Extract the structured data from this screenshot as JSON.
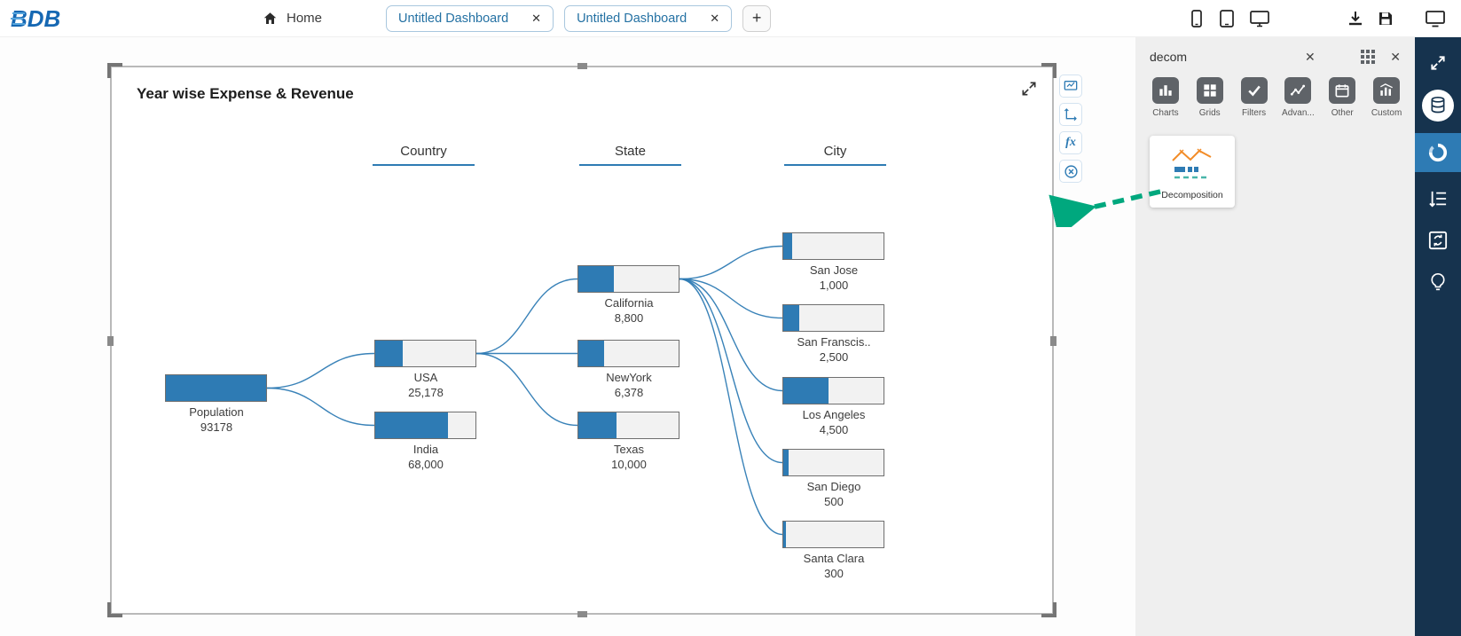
{
  "topbar": {
    "logo_text": "BDB",
    "home_label": "Home",
    "tabs": [
      {
        "label": "Untitled Dashboard"
      },
      {
        "label": "Untitled Dashboard"
      }
    ],
    "add_tab_label": "+"
  },
  "widget": {
    "title": "Year wise Expense & Revenue",
    "toolbar_fx": "fx"
  },
  "chart_data": {
    "type": "decomposition-tree",
    "title": "Year wise Expense & Revenue",
    "columns": [
      "Country",
      "State",
      "City"
    ],
    "nodes": [
      {
        "id": "population",
        "label": "Population",
        "value": "93178",
        "fill": 1.0
      },
      {
        "id": "usa",
        "label": "USA",
        "value": "25,178",
        "fill": 0.27
      },
      {
        "id": "india",
        "label": "India",
        "value": "68,000",
        "fill": 0.73
      },
      {
        "id": "california",
        "label": "California",
        "value": "8,800",
        "fill": 0.35
      },
      {
        "id": "newyork",
        "label": "NewYork",
        "value": "6,378",
        "fill": 0.26
      },
      {
        "id": "texas",
        "label": "Texas",
        "value": "10,000",
        "fill": 0.38
      },
      {
        "id": "sanjose",
        "label": "San Jose",
        "value": "1,000",
        "fill": 0.09
      },
      {
        "id": "sanfrancisco",
        "label": "San Franscis..",
        "value": "2,500",
        "fill": 0.16
      },
      {
        "id": "losangeles",
        "label": "Los Angeles",
        "value": "4,500",
        "fill": 0.45
      },
      {
        "id": "sandiego",
        "label": "San Diego",
        "value": "500",
        "fill": 0.05
      },
      {
        "id": "santaclara",
        "label": "Santa Clara",
        "value": "300",
        "fill": 0.03
      }
    ],
    "links": [
      [
        "population",
        "usa"
      ],
      [
        "population",
        "india"
      ],
      [
        "usa",
        "california"
      ],
      [
        "usa",
        "newyork"
      ],
      [
        "usa",
        "texas"
      ],
      [
        "california",
        "sanjose"
      ],
      [
        "california",
        "sanfrancisco"
      ],
      [
        "california",
        "losangeles"
      ],
      [
        "california",
        "sandiego"
      ],
      [
        "california",
        "santaclara"
      ]
    ]
  },
  "panel": {
    "search_value": "decom",
    "categories": [
      {
        "label": "Charts",
        "icon": "bar-chart"
      },
      {
        "label": "Grids",
        "icon": "grid"
      },
      {
        "label": "Filters",
        "icon": "check"
      },
      {
        "label": "Advan...",
        "icon": "scatter"
      },
      {
        "label": "Other",
        "icon": "calendar"
      },
      {
        "label": "Custom",
        "icon": "custom-chart"
      }
    ],
    "result_label": "Decomposition"
  },
  "icons": {
    "close": "✕"
  },
  "colors": {
    "accent_blue": "#2e7bb4",
    "tab_text": "#2471a3",
    "arrow_green": "#00a87e",
    "rail_bg": "#16334e"
  }
}
